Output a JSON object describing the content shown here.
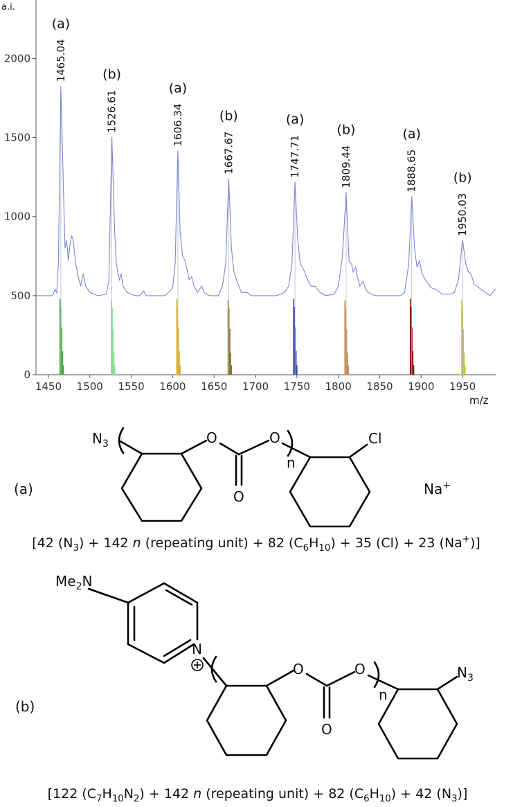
{
  "chart_data": {
    "type": "spectrum",
    "y_label": "a.i.",
    "x_label": "m/z",
    "xlim": [
      1435,
      1990
    ],
    "ylim": [
      0,
      2370
    ],
    "xticks": [
      1450,
      1500,
      1550,
      1600,
      1650,
      1700,
      1750,
      1800,
      1850,
      1900,
      1950
    ],
    "yticks": [
      0,
      500,
      1000,
      1500,
      2000
    ],
    "trace": {
      "color": "#7c84d8",
      "x": [
        1435,
        1455,
        1458,
        1460,
        1462,
        1465,
        1468,
        1470,
        1472,
        1474,
        1476,
        1478,
        1480,
        1483,
        1486,
        1489,
        1492,
        1495,
        1500,
        1505,
        1510,
        1520,
        1523,
        1526.6,
        1530,
        1532,
        1534,
        1536,
        1538,
        1540,
        1545,
        1550,
        1555,
        1560,
        1565,
        1568,
        1575,
        1590,
        1595,
        1600,
        1603,
        1606.3,
        1609,
        1612,
        1615,
        1618,
        1620,
        1623,
        1626,
        1630,
        1635,
        1638,
        1645,
        1655,
        1660,
        1664,
        1667.7,
        1671,
        1674,
        1677,
        1680,
        1683,
        1690,
        1695,
        1710,
        1725,
        1735,
        1740,
        1744,
        1747.7,
        1751,
        1754,
        1757,
        1760,
        1763,
        1767,
        1772,
        1778,
        1785,
        1795,
        1800,
        1805,
        1809.4,
        1813,
        1816,
        1818,
        1821,
        1823,
        1826,
        1830,
        1833,
        1836,
        1840,
        1845,
        1865,
        1875,
        1880,
        1885,
        1888.7,
        1892,
        1895,
        1898,
        1901,
        1905,
        1908,
        1912,
        1918,
        1925,
        1935,
        1940,
        1945,
        1950,
        1954,
        1957,
        1960,
        1964,
        1968,
        1972,
        1978,
        1983,
        1988,
        1990
      ],
      "values": [
        500,
        500,
        540,
        520,
        700,
        1825,
        1200,
        800,
        850,
        720,
        820,
        880,
        850,
        700,
        620,
        560,
        640,
        560,
        520,
        510,
        500,
        510,
        600,
        1504,
        900,
        700,
        640,
        600,
        640,
        560,
        520,
        510,
        500,
        500,
        530,
        500,
        500,
        500,
        520,
        550,
        700,
        1417,
        900,
        750,
        720,
        650,
        600,
        620,
        560,
        520,
        560,
        520,
        500,
        500,
        560,
        700,
        1241,
        800,
        650,
        600,
        560,
        520,
        520,
        500,
        500,
        500,
        520,
        560,
        700,
        1219,
        850,
        700,
        680,
        640,
        600,
        560,
        560,
        520,
        500,
        510,
        560,
        750,
        1154,
        720,
        700,
        650,
        680,
        620,
        560,
        590,
        540,
        520,
        510,
        500,
        500,
        500,
        520,
        700,
        1127,
        800,
        680,
        720,
        640,
        600,
        580,
        550,
        540,
        510,
        510,
        520,
        600,
        851,
        700,
        650,
        640,
        570,
        560,
        540,
        520,
        500,
        530,
        540
      ]
    },
    "distributions": [
      {
        "color": "#3fae3a",
        "x": [
          1464,
          1465,
          1466,
          1467,
          1468
        ],
        "values": [
          480,
          430,
          300,
          150,
          60
        ]
      },
      {
        "color": "#86e08f",
        "x": [
          1526,
          1527,
          1528,
          1529,
          1530
        ],
        "values": [
          470,
          420,
          290,
          140,
          60
        ]
      },
      {
        "color": "#dfb01e",
        "x": [
          1605,
          1606,
          1607,
          1608,
          1609
        ],
        "values": [
          480,
          430,
          300,
          150,
          60
        ]
      },
      {
        "color": "#8a7a2a",
        "x": [
          1667,
          1668,
          1669,
          1670,
          1671
        ],
        "values": [
          470,
          420,
          290,
          140,
          60
        ]
      },
      {
        "color": "#3a4bb0",
        "x": [
          1746,
          1747,
          1748,
          1749,
          1750
        ],
        "values": [
          480,
          430,
          300,
          150,
          60
        ]
      },
      {
        "color": "#c8884a",
        "x": [
          1808,
          1809,
          1810,
          1811,
          1812
        ],
        "values": [
          470,
          420,
          290,
          140,
          60
        ]
      },
      {
        "color": "#8b1a0a",
        "x": [
          1887,
          1888,
          1889,
          1890,
          1891
        ],
        "values": [
          480,
          430,
          300,
          150,
          60
        ]
      },
      {
        "color": "#c8c832",
        "x": [
          1949,
          1950,
          1951,
          1952,
          1953
        ],
        "values": [
          470,
          420,
          290,
          140,
          60
        ]
      }
    ],
    "peaks": [
      {
        "x": 1465.04,
        "y": 1825,
        "label": "(a)"
      },
      {
        "x": 1526.61,
        "y": 1504,
        "label": "(b)"
      },
      {
        "x": 1606.34,
        "y": 1417,
        "label": "(a)"
      },
      {
        "x": 1667.67,
        "y": 1241,
        "label": "(b)"
      },
      {
        "x": 1747.71,
        "y": 1219,
        "label": "(a)"
      },
      {
        "x": 1809.44,
        "y": 1154,
        "label": "(b)"
      },
      {
        "x": 1888.65,
        "y": 1127,
        "label": "(a)"
      },
      {
        "x": 1950.03,
        "y": 851,
        "label": "(b)"
      }
    ]
  },
  "structures": {
    "a": {
      "label": "(a)",
      "n3": [
        {
          "t": "N"
        },
        {
          "t": "3",
          "style": "sub"
        }
      ],
      "o_ether_1": "O",
      "o_ether_2": "O",
      "o_carbonyl": "O",
      "n": "n",
      "cl": "Cl",
      "na": [
        {
          "t": "Na"
        },
        {
          "t": "+",
          "style": "sup"
        }
      ],
      "formula": [
        {
          "t": "[42 (N"
        },
        {
          "t": "3",
          "style": "sub"
        },
        {
          "t": ") + 142 "
        },
        {
          "t": "n",
          "style": "italic"
        },
        {
          "t": " (repeating unit) + 82 (C"
        },
        {
          "t": "6",
          "style": "sub"
        },
        {
          "t": "H"
        },
        {
          "t": "10",
          "style": "sub"
        },
        {
          "t": ") + 35 (Cl) + 23 (Na"
        },
        {
          "t": "+",
          "style": "sup"
        },
        {
          "t": ")]"
        }
      ]
    },
    "b": {
      "label": "(b)",
      "me2n": [
        {
          "t": "Me"
        },
        {
          "t": "2",
          "style": "sub"
        },
        {
          "t": "N"
        }
      ],
      "n_pyr": "N",
      "o_ether_1": "O",
      "o_ether_2": "O",
      "o_carbonyl": "O",
      "n": "n",
      "n3": [
        {
          "t": "N"
        },
        {
          "t": "3",
          "style": "sub"
        }
      ],
      "formula": [
        {
          "t": "[122 (C"
        },
        {
          "t": "7",
          "style": "sub"
        },
        {
          "t": "H"
        },
        {
          "t": "10",
          "style": "sub"
        },
        {
          "t": "N"
        },
        {
          "t": "2",
          "style": "sub"
        },
        {
          "t": ") + 142 "
        },
        {
          "t": "n",
          "style": "italic"
        },
        {
          "t": " (repeating unit) + 82 (C"
        },
        {
          "t": "6",
          "style": "sub"
        },
        {
          "t": "H"
        },
        {
          "t": "10",
          "style": "sub"
        },
        {
          "t": ") + 42 (N"
        },
        {
          "t": "3",
          "style": "sub"
        },
        {
          "t": ")]"
        }
      ]
    }
  }
}
